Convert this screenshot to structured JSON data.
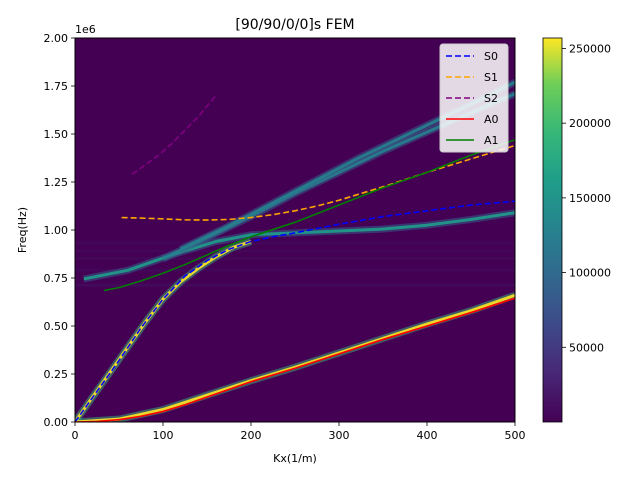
{
  "chart_data": {
    "type": "heatmap",
    "title": "[90/90/0/0]s FEM",
    "xlabel": "Kx(1/m)",
    "ylabel": "Freq(Hz)",
    "xlim": [
      0,
      500
    ],
    "ylim": [
      0,
      2000000
    ],
    "y_offset_label": "1e6",
    "x_ticks": [
      0,
      100,
      200,
      300,
      400,
      500
    ],
    "x_tick_labels": [
      "0",
      "100",
      "200",
      "300",
      "400",
      "500"
    ],
    "y_ticks": [
      0,
      250000,
      500000,
      750000,
      1000000,
      1250000,
      1500000,
      1750000,
      2000000
    ],
    "y_tick_labels": [
      "0.00",
      "0.25",
      "0.50",
      "0.75",
      "1.00",
      "1.25",
      "1.50",
      "1.75",
      "2.00"
    ],
    "colormap": "viridis",
    "colorbar": {
      "min": 0,
      "max": 257000,
      "ticks": [
        50000,
        100000,
        150000,
        200000,
        250000
      ],
      "tick_labels": [
        "50000",
        "100000",
        "150000",
        "200000",
        "250000"
      ]
    },
    "legend_position": "top-right",
    "series": [
      {
        "name": "S0",
        "color": "#0000ff",
        "style": "dashed",
        "x": [
          0,
          25,
          50,
          75,
          100,
          125,
          150,
          175,
          200,
          225,
          250,
          300,
          350,
          400,
          450,
          500
        ],
        "y": [
          0,
          160000,
          320000,
          490000,
          640000,
          760000,
          840000,
          900000,
          940000,
          965000,
          985000,
          1030000,
          1070000,
          1100000,
          1130000,
          1150000
        ]
      },
      {
        "name": "S1",
        "color": "#ffa500",
        "style": "dashed",
        "x": [
          53,
          75,
          100,
          125,
          150,
          175,
          200,
          225,
          250,
          275,
          300,
          350,
          400,
          450,
          500
        ],
        "y": [
          1065000,
          1062000,
          1058000,
          1053000,
          1052000,
          1055000,
          1065000,
          1080000,
          1100000,
          1125000,
          1155000,
          1225000,
          1300000,
          1370000,
          1440000
        ]
      },
      {
        "name": "S2",
        "color": "#800080",
        "style": "dashed",
        "x": [
          65,
          80,
          95,
          110,
          125,
          140,
          160
        ],
        "y": [
          1290000,
          1340000,
          1390000,
          1450000,
          1520000,
          1590000,
          1700000
        ]
      },
      {
        "name": "A0",
        "color": "#ff0000",
        "style": "solid",
        "x": [
          0,
          25,
          50,
          75,
          100,
          125,
          150,
          175,
          200,
          250,
          300,
          350,
          400,
          450,
          500
        ],
        "y": [
          0,
          3000,
          12000,
          30000,
          55000,
          90000,
          130000,
          170000,
          210000,
          280000,
          355000,
          430000,
          500000,
          570000,
          645000
        ]
      },
      {
        "name": "A1",
        "color": "#008000",
        "style": "solid",
        "x": [
          33,
          50,
          75,
          100,
          125,
          150,
          175,
          200,
          250,
          300,
          350,
          400,
          450,
          500
        ],
        "y": [
          685000,
          700000,
          735000,
          775000,
          820000,
          870000,
          920000,
          965000,
          1040000,
          1130000,
          1220000,
          1300000,
          1390000,
          1470000
        ]
      }
    ],
    "ridges": [
      {
        "x": [
          0,
          20,
          40,
          60,
          80,
          100,
          120,
          140,
          160,
          180,
          200
        ],
        "y": [
          0,
          130000,
          260000,
          390000,
          520000,
          640000,
          730000,
          800000,
          860000,
          910000,
          940000
        ],
        "intensity": 0.95
      },
      {
        "x": [
          0,
          50,
          100,
          150,
          200,
          250,
          300,
          350,
          400,
          450,
          500
        ],
        "y": [
          0,
          15000,
          65000,
          140000,
          215000,
          285000,
          360000,
          435000,
          510000,
          580000,
          660000
        ],
        "intensity": 0.95
      },
      {
        "x": [
          10,
          60,
          110,
          160,
          200,
          250,
          300,
          350,
          400,
          450,
          500
        ],
        "y": [
          745000,
          790000,
          870000,
          940000,
          975000,
          985000,
          995000,
          1005000,
          1025000,
          1055000,
          1090000
        ],
        "intensity": 0.55
      },
      {
        "x": [
          100,
          150,
          200,
          250,
          300,
          350,
          400,
          450,
          500
        ],
        "y": [
          850000,
          960000,
          1070000,
          1190000,
          1300000,
          1410000,
          1510000,
          1610000,
          1710000
        ],
        "intensity": 0.45
      },
      {
        "x": [
          120,
          170,
          220,
          270,
          320,
          370,
          420,
          470,
          500
        ],
        "y": [
          900000,
          1010000,
          1130000,
          1250000,
          1370000,
          1480000,
          1590000,
          1700000,
          1770000
        ],
        "intensity": 0.4
      }
    ]
  }
}
